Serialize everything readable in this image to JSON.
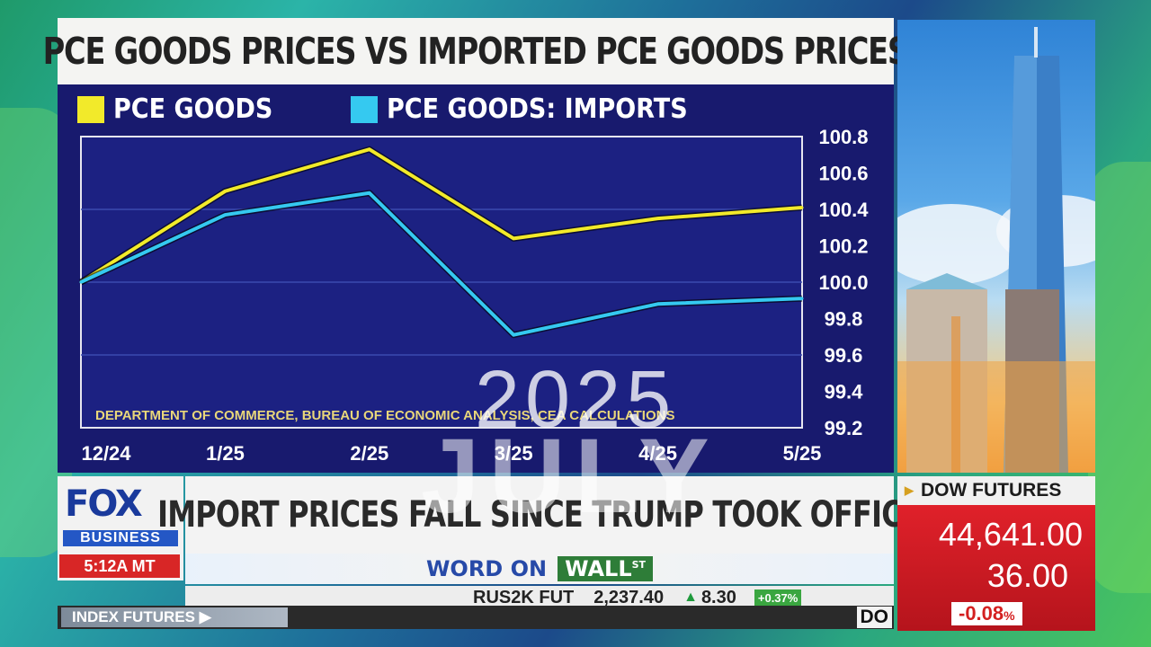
{
  "chart_data": {
    "type": "line",
    "title": "PCE GOODS PRICES VS IMPORTED PCE GOODS PRICES",
    "categories": [
      "12/24",
      "1/25",
      "2/25",
      "3/25",
      "4/25",
      "5/25"
    ],
    "series": [
      {
        "name": "PCE GOODS",
        "color": "#f2ea2a",
        "values": [
          100.0,
          100.5,
          100.73,
          100.24,
          100.35,
          100.41
        ]
      },
      {
        "name": "PCE GOODS: IMPORTS",
        "color": "#35c9f0",
        "values": [
          100.0,
          100.37,
          100.49,
          99.71,
          99.88,
          99.91
        ]
      }
    ],
    "yticks": [
      "100.8",
      "100.6",
      "100.4",
      "100.2",
      "100.0",
      "99.8",
      "99.6",
      "99.4",
      "99.2"
    ],
    "ylim": [
      99.2,
      100.8
    ],
    "grid": true,
    "legend": "top-left",
    "source": "DEPARTMENT OF COMMERCE, BUREAU OF ECONOMIC ANALYSIS, CEA CALCULATIONS"
  },
  "network": {
    "logo_word": "FOX",
    "logo_sub": "BUSINESS",
    "time": "5:12A MT"
  },
  "headline": "IMPORT PRICES FALL SINCE TRUMP TOOK OFFICE",
  "show": {
    "word": "WORD ON",
    "wall": "WALL",
    "wall_sup": "ST"
  },
  "ticker": {
    "symbol": "RUS2K FUT",
    "value": "2,237.40",
    "change": "8.30",
    "pct": "+0.37%",
    "label": "INDEX FUTURES",
    "next": "DO"
  },
  "dow": {
    "label": "DOW FUTURES",
    "value": "44,641.00",
    "change": "36.00",
    "pct": "-0.08",
    "pct_sign": "%"
  },
  "overlay": {
    "year": "2025",
    "month": "JULY"
  },
  "colors": {
    "chart_bg": "#181a6e",
    "alert_red": "#d82626"
  }
}
